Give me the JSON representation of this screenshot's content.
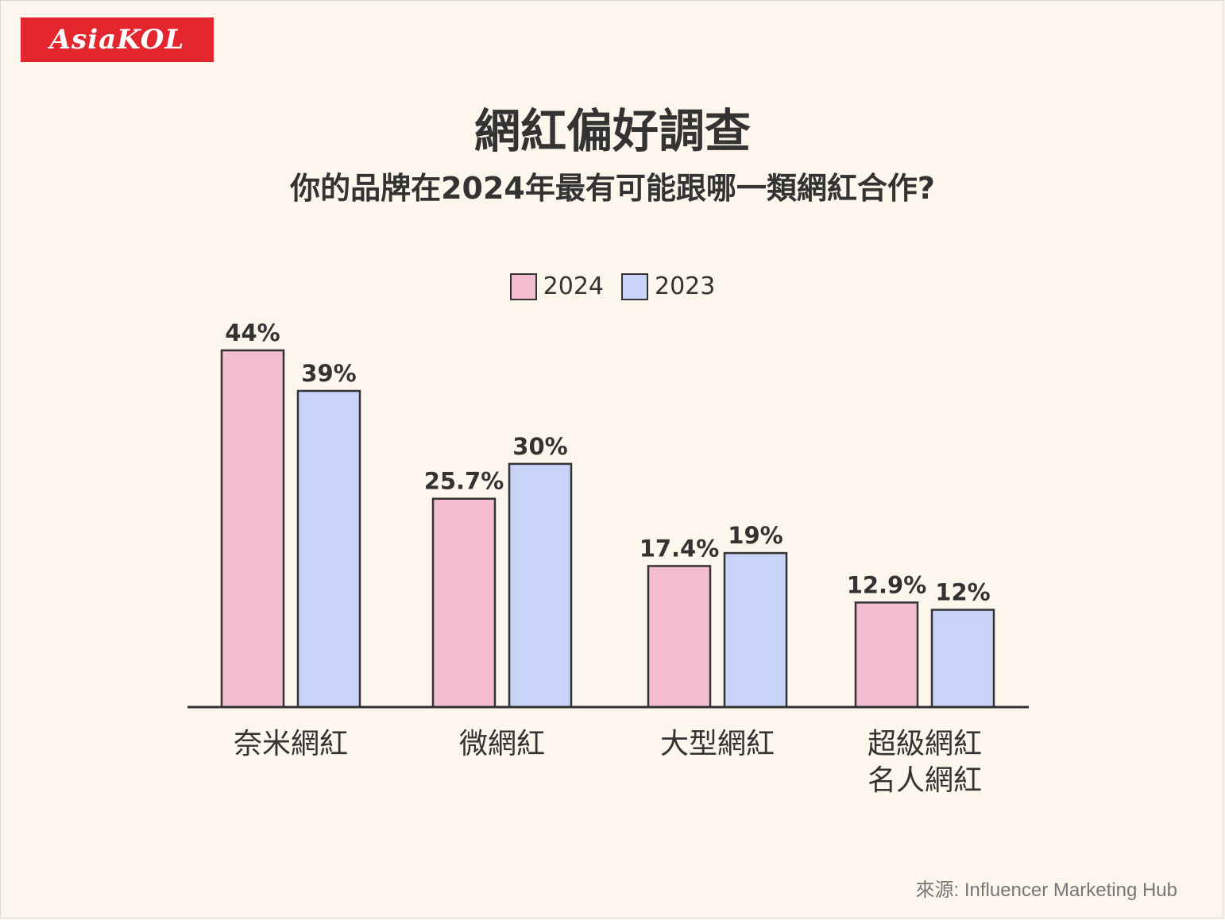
{
  "brand": {
    "logo_text": "AsiaKOL",
    "accent": "#e4272e"
  },
  "chart_data": {
    "type": "bar",
    "title": "網紅偏好調查",
    "subtitle": "你的品牌在2024年最有可能跟哪一類網紅合作?",
    "categories": [
      "奈米網紅",
      "微網紅",
      "大型網紅",
      "超級網紅\n名人網紅"
    ],
    "series": [
      {
        "name": "2024",
        "color": "#f4bcd0",
        "values": [
          44,
          25.7,
          17.4,
          12.9
        ],
        "labels": [
          "44%",
          "25.7%",
          "17.4%",
          "12.9%"
        ]
      },
      {
        "name": "2023",
        "color": "#c9d2f7",
        "values": [
          39,
          30,
          19,
          12
        ],
        "labels": [
          "39%",
          "30%",
          "19%",
          "12%"
        ]
      }
    ],
    "ylim": [
      0,
      44
    ],
    "grid": false,
    "legend_position": "top-center"
  },
  "source": "來源: Influencer Marketing Hub"
}
